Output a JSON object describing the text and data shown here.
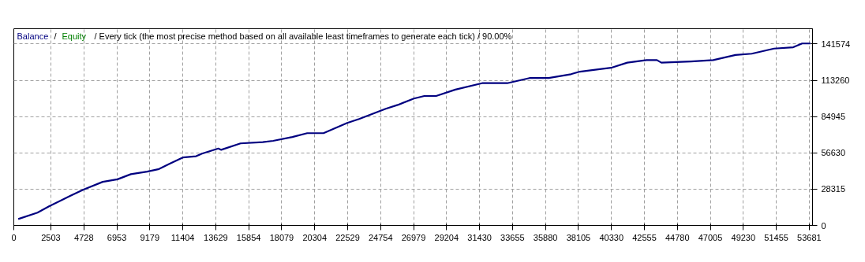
{
  "chart_data": {
    "type": "line",
    "title": "/ Every tick (the most precise method based on all available least timeframes to generate each tick) / 90.00%",
    "annotations": [
      "/"
    ],
    "grid": true,
    "line_style": "solid",
    "marker": "none",
    "xlim": [
      0,
      53900
    ],
    "ylim": [
      0,
      153500
    ],
    "xticks": [
      0,
      2503,
      4728,
      6953,
      9179,
      11404,
      13629,
      15854,
      18079,
      20304,
      22529,
      24754,
      26979,
      29204,
      31430,
      33655,
      35880,
      38105,
      40330,
      42555,
      44780,
      47005,
      49230,
      51455,
      53681
    ],
    "yticks": [
      0,
      28315,
      56630,
      84945,
      113260,
      141574
    ],
    "series": [
      {
        "name": "Balance",
        "color": "#000080",
        "x": [
          300,
          1600,
          2400,
          3800,
          4700,
          6000,
          7000,
          7900,
          9000,
          9800,
          10500,
          11400,
          12300,
          12700,
          13800,
          14000,
          15300,
          16800,
          17500,
          18800,
          19800,
          20900,
          22500,
          23300,
          25100,
          25900,
          27000,
          27700,
          28500,
          29800,
          31600,
          33300,
          34800,
          36100,
          37600,
          38200,
          40300,
          41400,
          42700,
          43400,
          43700,
          45700,
          47200,
          48700,
          49800,
          51300,
          52600,
          53200,
          53760
        ],
        "values": [
          5000,
          10000,
          15000,
          23000,
          28000,
          34000,
          36000,
          40000,
          42000,
          44000,
          48000,
          53000,
          54000,
          56000,
          60000,
          59000,
          64000,
          65000,
          66000,
          69000,
          72000,
          72000,
          80000,
          83000,
          91000,
          94000,
          99000,
          101000,
          101000,
          106000,
          111000,
          111000,
          115000,
          115000,
          118000,
          120000,
          123000,
          127000,
          129000,
          129000,
          127000,
          128000,
          129000,
          133000,
          134000,
          138000,
          139000,
          142000,
          142000
        ]
      },
      {
        "name": "Equity",
        "color": "#008000",
        "values": [
          null
        ]
      }
    ]
  }
}
